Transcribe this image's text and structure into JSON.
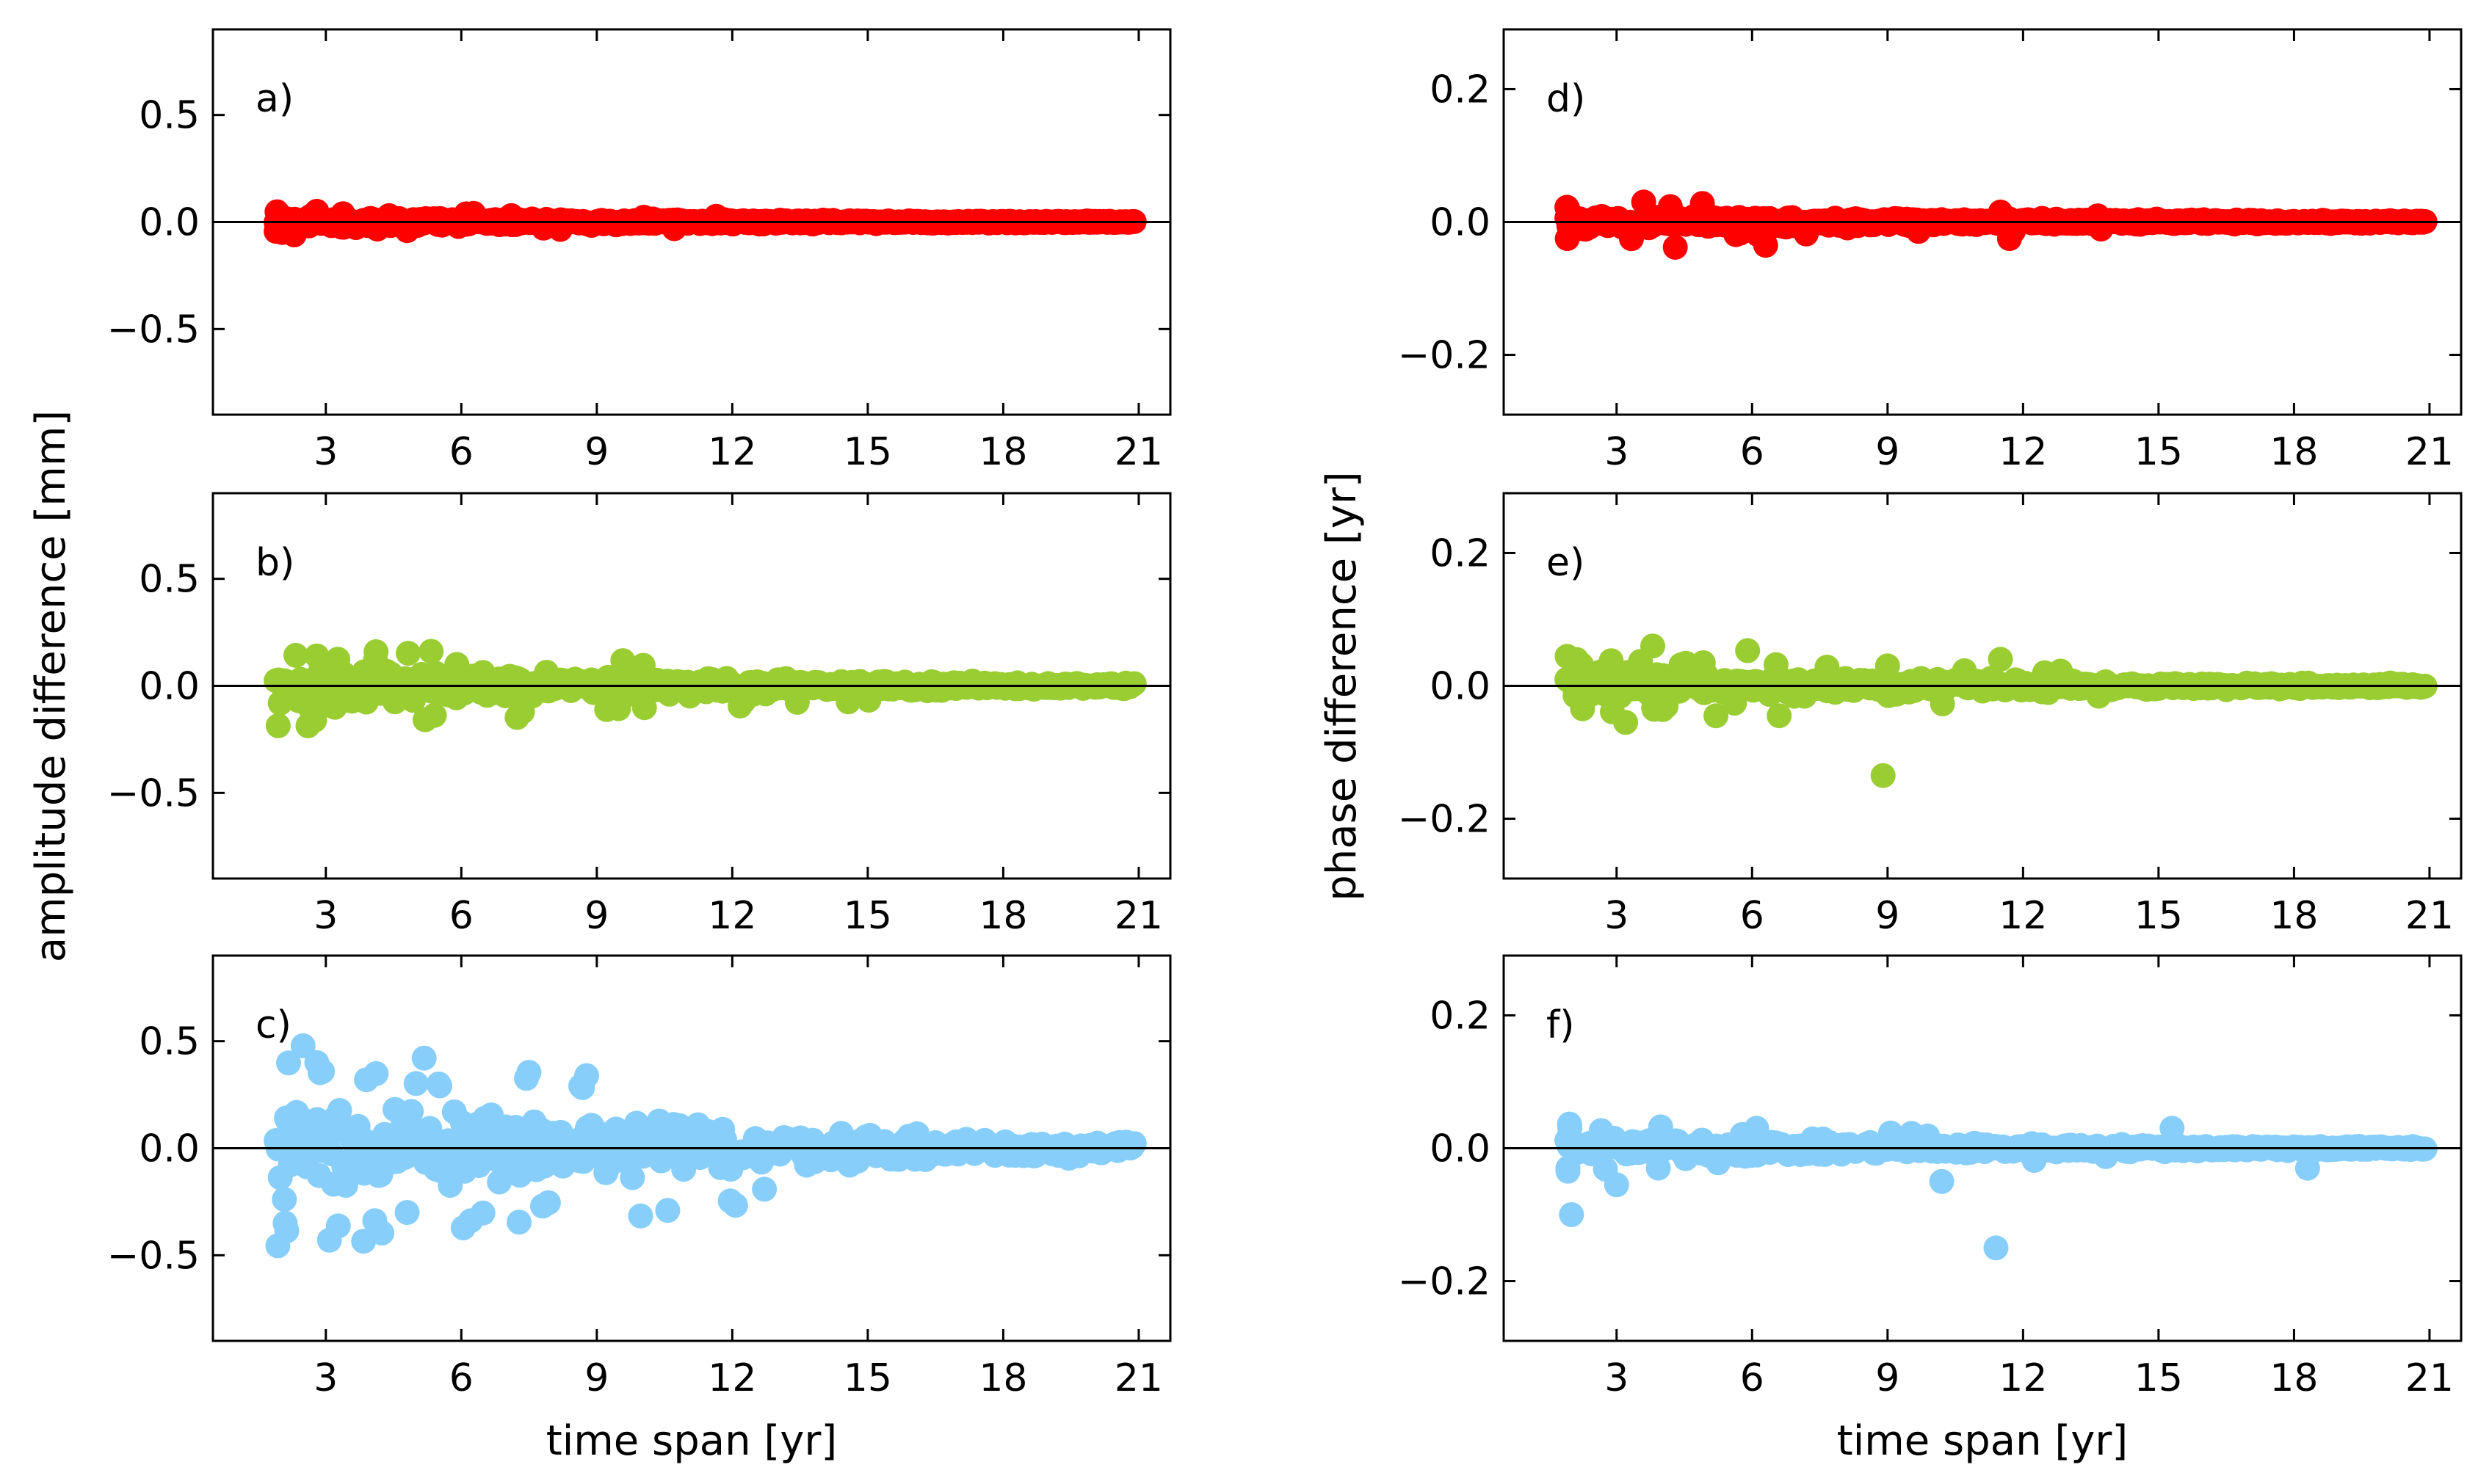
{
  "figure": {
    "left_ylabel": "amplitude difference [mm]",
    "right_ylabel": "phase difference [yr]",
    "left_xlabel": "time span [yr]",
    "right_xlabel": "time span [yr]"
  },
  "chart_data": [
    {
      "panel": "a)",
      "type": "scatter",
      "column": "left",
      "row": 0,
      "title": "",
      "xlabel": "",
      "ylabel": "amplitude difference [mm]",
      "xlim": [
        0.5,
        21.7
      ],
      "ylim": [
        -0.9,
        0.9
      ],
      "xticks": [
        3,
        6,
        9,
        12,
        15,
        18,
        21
      ],
      "yticks": [
        0.5,
        0.0,
        -0.5
      ],
      "ytick_labels": [
        "0.5",
        "0.0",
        "−0.5"
      ],
      "color": "#ff0000",
      "x_range": [
        1.9,
        20.9
      ],
      "spread": 0.035,
      "outlier_count": 14,
      "outliers": [
        [
          2.8,
          0.05
        ],
        [
          2.3,
          -0.06
        ],
        [
          4.4,
          0.03
        ],
        [
          4.8,
          -0.04
        ]
      ],
      "seed": 1
    },
    {
      "panel": "b)",
      "type": "scatter",
      "column": "left",
      "row": 1,
      "title": "",
      "xlabel": "",
      "ylabel": "amplitude difference [mm]",
      "xlim": [
        0.5,
        21.7
      ],
      "ylim": [
        -0.9,
        0.9
      ],
      "xticks": [
        3,
        6,
        9,
        12,
        15,
        18,
        21
      ],
      "yticks": [
        0.5,
        0.0,
        -0.5
      ],
      "ytick_labels": [
        "0.5",
        "0.0",
        "−0.5"
      ],
      "color": "#9acd32",
      "x_range": [
        1.9,
        20.9
      ],
      "spread": 0.13,
      "outlier_count": 22,
      "outliers": [
        [
          2.8,
          0.14
        ],
        [
          2.7,
          -0.13
        ],
        [
          4.1,
          0.12
        ],
        [
          3.2,
          -0.1
        ],
        [
          5.9,
          0.1
        ]
      ],
      "seed": 2
    },
    {
      "panel": "c)",
      "type": "scatter",
      "column": "left",
      "row": 2,
      "title": "",
      "xlabel": "time span [yr]",
      "ylabel": "amplitude difference [mm]",
      "xlim": [
        0.5,
        21.7
      ],
      "ylim": [
        -0.9,
        0.9
      ],
      "xticks": [
        3,
        6,
        9,
        12,
        15,
        18,
        21
      ],
      "yticks": [
        0.5,
        0.0,
        -0.5
      ],
      "ytick_labels": [
        "0.5",
        "0.0",
        "−0.5"
      ],
      "color": "#87cefa",
      "x_range": [
        1.9,
        20.9
      ],
      "spread": 0.34,
      "outlier_count": 30,
      "outliers": [
        [
          2.8,
          0.4
        ],
        [
          2.1,
          -0.35
        ],
        [
          7.8,
          -0.27
        ],
        [
          5.5,
          0.3
        ],
        [
          4.8,
          -0.3
        ],
        [
          3.9,
          0.32
        ]
      ],
      "seed": 3
    },
    {
      "panel": "d)",
      "type": "scatter",
      "column": "right",
      "row": 0,
      "title": "",
      "xlabel": "",
      "ylabel": "phase difference [yr]",
      "xlim": [
        0.5,
        21.7
      ],
      "ylim": [
        -0.29,
        0.29
      ],
      "xticks": [
        3,
        6,
        9,
        12,
        15,
        18,
        21
      ],
      "yticks": [
        0.2,
        0.0,
        -0.2
      ],
      "ytick_labels": [
        "0.2",
        "0.0",
        "−0.2"
      ],
      "color": "#ff0000",
      "x_range": [
        1.9,
        20.9
      ],
      "spread": 0.018,
      "outlier_count": 12,
      "outliers": [
        [
          3.6,
          0.03
        ],
        [
          4.3,
          -0.038
        ],
        [
          4.9,
          0.028
        ],
        [
          6.3,
          -0.035
        ],
        [
          11.7,
          -0.025
        ],
        [
          7.2,
          -0.018
        ],
        [
          11.5,
          0.015
        ]
      ],
      "seed": 4
    },
    {
      "panel": "e)",
      "type": "scatter",
      "column": "right",
      "row": 1,
      "title": "",
      "xlabel": "",
      "ylabel": "phase difference [yr]",
      "xlim": [
        0.5,
        21.7
      ],
      "ylim": [
        -0.29,
        0.29
      ],
      "xticks": [
        3,
        6,
        9,
        12,
        15,
        18,
        21
      ],
      "yticks": [
        0.2,
        0.0,
        -0.2
      ],
      "ytick_labels": [
        "0.2",
        "0.0",
        "−0.2"
      ],
      "color": "#9acd32",
      "x_range": [
        1.9,
        20.9
      ],
      "spread": 0.03,
      "outlier_count": 22,
      "outliers": [
        [
          3.8,
          0.06
        ],
        [
          5.9,
          0.053
        ],
        [
          8.9,
          -0.135
        ],
        [
          3.2,
          -0.055
        ],
        [
          5.2,
          -0.045
        ],
        [
          6.6,
          -0.045
        ],
        [
          11.5,
          0.04
        ],
        [
          9.0,
          0.03
        ]
      ],
      "seed": 5
    },
    {
      "panel": "f)",
      "type": "scatter",
      "column": "right",
      "row": 2,
      "title": "",
      "xlabel": "time span [yr]",
      "ylabel": "phase difference [yr]",
      "xlim": [
        0.5,
        21.7
      ],
      "ylim": [
        -0.29,
        0.29
      ],
      "xticks": [
        3,
        6,
        9,
        12,
        15,
        18,
        21
      ],
      "yticks": [
        0.2,
        0.0,
        -0.2
      ],
      "ytick_labels": [
        "0.2",
        "0.0",
        "−0.2"
      ],
      "color": "#87cefa",
      "x_range": [
        1.9,
        20.9
      ],
      "spread": 0.025,
      "outlier_count": 16,
      "outliers": [
        [
          2.0,
          -0.1
        ],
        [
          11.4,
          -0.15
        ],
        [
          10.2,
          -0.05
        ],
        [
          15.3,
          0.03
        ],
        [
          18.3,
          -0.03
        ],
        [
          3.0,
          -0.055
        ],
        [
          6.1,
          0.03
        ]
      ],
      "seed": 6
    }
  ]
}
